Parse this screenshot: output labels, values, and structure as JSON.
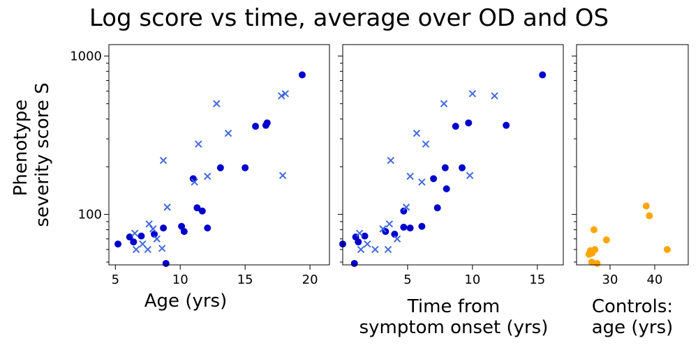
{
  "title": "Log score vs time, average over OD and OS",
  "ylabel_lines": [
    "Phenotype",
    "severity score S"
  ],
  "colors": {
    "dot": "#0000cd",
    "cross": "#4169e1",
    "control": "#ffa500"
  },
  "chart_data": [
    {
      "type": "scatter",
      "xlabel_lines": [
        "Age (yrs)"
      ],
      "xlim": [
        4.5,
        21.5
      ],
      "ylim": [
        48,
        1180
      ],
      "yscale": "log",
      "xticks": [
        5,
        10,
        15,
        20
      ],
      "yticks": [
        100,
        1000
      ],
      "yticklabels": [
        "100",
        "1000"
      ],
      "grid": false,
      "series": [
        {
          "marker": "dot",
          "points": [
            [
              5.2,
              65
            ],
            [
              6.1,
              72
            ],
            [
              6.4,
              67
            ],
            [
              7.0,
              73
            ],
            [
              8.0,
              75
            ],
            [
              8.7,
              82
            ],
            [
              8.9,
              49
            ],
            [
              10.1,
              84
            ],
            [
              10.3,
              78
            ],
            [
              11.0,
              168
            ],
            [
              11.3,
              110
            ],
            [
              11.7,
              105
            ],
            [
              12.1,
              82
            ],
            [
              13.1,
              197
            ],
            [
              15.0,
              197
            ],
            [
              15.8,
              360
            ],
            [
              16.6,
              365
            ],
            [
              16.7,
              378
            ],
            [
              19.4,
              760
            ]
          ]
        },
        {
          "marker": "cross",
          "points": [
            [
              6.5,
              76
            ],
            [
              6.6,
              60
            ],
            [
              7.1,
              65
            ],
            [
              7.5,
              60
            ],
            [
              7.6,
              87
            ],
            [
              7.9,
              81
            ],
            [
              8.2,
              70
            ],
            [
              8.6,
              61
            ],
            [
              8.7,
              219
            ],
            [
              9.0,
              111
            ],
            [
              11.1,
              160
            ],
            [
              11.4,
              278
            ],
            [
              12.1,
              174
            ],
            [
              12.8,
              500
            ],
            [
              13.7,
              325
            ],
            [
              17.8,
              560
            ],
            [
              18.1,
              578
            ],
            [
              17.9,
              176
            ]
          ]
        }
      ]
    },
    {
      "type": "scatter",
      "xlabel_lines": [
        "Time from",
        "symptom onset (yrs)"
      ],
      "xlim": [
        0,
        17
      ],
      "ylim": [
        48,
        1180
      ],
      "yscale": "log",
      "xticks": [
        5,
        10,
        15
      ],
      "grid": false,
      "series": [
        {
          "marker": "dot",
          "points": [
            [
              0,
              65
            ],
            [
              0.9,
              49
            ],
            [
              1.0,
              72
            ],
            [
              1.2,
              67
            ],
            [
              1.7,
              73
            ],
            [
              3.3,
              78
            ],
            [
              4.0,
              75
            ],
            [
              4.7,
              105
            ],
            [
              4.7,
              83
            ],
            [
              5.2,
              82
            ],
            [
              6.1,
              84
            ],
            [
              7.0,
              168
            ],
            [
              7.3,
              110
            ],
            [
              7.9,
              197
            ],
            [
              8.0,
              145
            ],
            [
              8.7,
              360
            ],
            [
              9.2,
              197
            ],
            [
              9.7,
              378
            ],
            [
              12.6,
              365
            ],
            [
              15.4,
              760
            ]
          ]
        },
        {
          "marker": "cross",
          "points": [
            [
              1.3,
              76
            ],
            [
              1.4,
              60
            ],
            [
              1.9,
              65
            ],
            [
              2.5,
              60
            ],
            [
              3.1,
              81
            ],
            [
              3.5,
              60
            ],
            [
              3.6,
              87
            ],
            [
              3.7,
              219
            ],
            [
              4.2,
              70
            ],
            [
              4.9,
              111
            ],
            [
              5.2,
              174
            ],
            [
              5.7,
              325
            ],
            [
              6.1,
              160
            ],
            [
              6.4,
              278
            ],
            [
              7.8,
              500
            ],
            [
              9.8,
              176
            ],
            [
              10.0,
              578
            ],
            [
              11.7,
              560
            ]
          ]
        }
      ]
    },
    {
      "type": "scatter",
      "xlabel_lines": [
        "Controls:",
        "age (yrs)"
      ],
      "xlim": [
        22.5,
        47.5
      ],
      "ylim": [
        48,
        1180
      ],
      "yscale": "log",
      "xticks": [
        30,
        40
      ],
      "grid": false,
      "series": [
        {
          "marker": "control",
          "points": [
            [
              25.3,
              56
            ],
            [
              25.6,
              59
            ],
            [
              25.9,
              50
            ],
            [
              26.0,
              57
            ],
            [
              26.4,
              80
            ],
            [
              26.6,
              60
            ],
            [
              27.1,
              49
            ],
            [
              29.2,
              69
            ],
            [
              38.1,
              113
            ],
            [
              38.8,
              98
            ],
            [
              42.8,
              60
            ]
          ]
        }
      ]
    }
  ]
}
